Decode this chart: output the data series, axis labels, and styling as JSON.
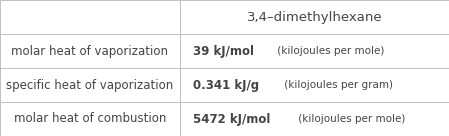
{
  "title": "3,4–dimethylhexane",
  "rows": [
    {
      "label": "molar heat of vaporization",
      "value_bold": "39 kJ/mol",
      "value_light": " (kilojoules per mole)"
    },
    {
      "label": "specific heat of vaporization",
      "value_bold": "0.341 kJ/g",
      "value_light": " (kilojoules per gram)"
    },
    {
      "label": "molar heat of combustion",
      "value_bold": "5472 kJ/mol",
      "value_light": " (kilojoules per mole)"
    }
  ],
  "col_split": 0.4,
  "background_color": "#ffffff",
  "border_color": "#c0c0c0",
  "text_color": "#444444",
  "header_fontsize": 9.5,
  "cell_fontsize": 8.5,
  "unit_fontsize": 7.5
}
